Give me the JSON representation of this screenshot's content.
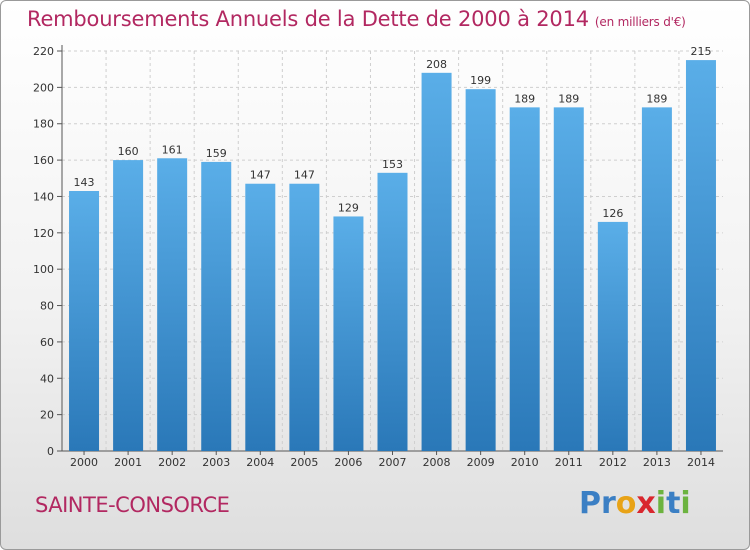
{
  "header": {
    "title": "Remboursements Annuels de la Dette de 2000 à 2014",
    "unit": "(en milliers d'€)"
  },
  "footer": {
    "commune": "SAINTE-CONSORCE",
    "logo_letters": [
      "P",
      "r",
      "o",
      "x",
      "i",
      "t",
      "i"
    ]
  },
  "colors": {
    "title": "#b22861",
    "bar_top": "#5aaee8",
    "bar_bottom": "#2a78b8",
    "logo": [
      "#3b7fc4",
      "#3b7fc4",
      "#e8a317",
      "#d9272e",
      "#6cb33f",
      "#3b7fc4",
      "#6cb33f"
    ]
  },
  "chart_data": {
    "type": "bar",
    "title": "Remboursements Annuels de la Dette de 2000 à 2014",
    "subtitle": "(en milliers d'€)",
    "xlabel": "",
    "ylabel": "",
    "categories": [
      "2000",
      "2001",
      "2002",
      "2003",
      "2004",
      "2005",
      "2006",
      "2007",
      "2008",
      "2009",
      "2010",
      "2011",
      "2012",
      "2013",
      "2014"
    ],
    "values": [
      143,
      160,
      161,
      159,
      147,
      147,
      129,
      153,
      208,
      199,
      189,
      189,
      126,
      189,
      215
    ],
    "ylim": [
      0,
      220
    ],
    "yticks": [
      0,
      20,
      40,
      60,
      80,
      100,
      120,
      140,
      160,
      180,
      200,
      220
    ],
    "grid": true
  }
}
